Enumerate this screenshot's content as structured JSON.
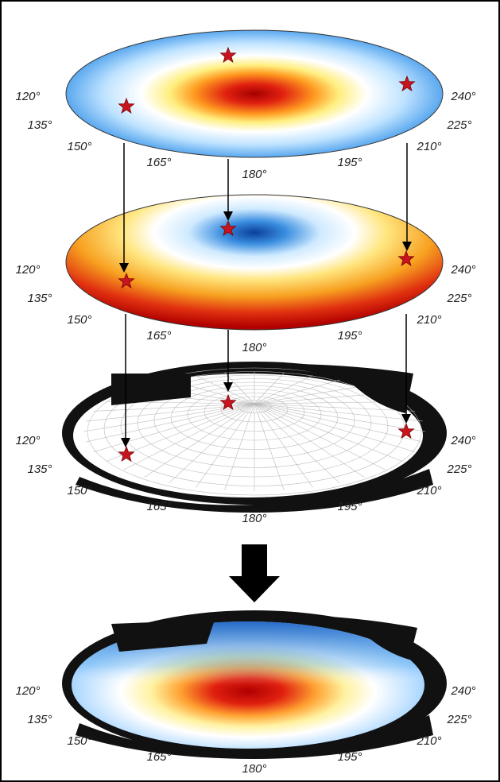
{
  "layers": [
    {
      "labels": [
        "120°",
        "135°",
        "150°",
        "165°",
        "180°",
        "195°",
        "210°",
        "225°",
        "240°"
      ]
    },
    {
      "labels": [
        "120°",
        "135°",
        "150°",
        "165°",
        "180°",
        "195°",
        "210°",
        "225°",
        "240°"
      ]
    },
    {
      "labels": [
        "120°",
        "135°",
        "150°",
        "165°",
        "180°",
        "195°",
        "210°",
        "225°",
        "240°"
      ]
    },
    {
      "labels": [
        "120°",
        "135°",
        "150°",
        "165°",
        "180°",
        "195°",
        "210°",
        "225°",
        "240°"
      ]
    }
  ]
}
